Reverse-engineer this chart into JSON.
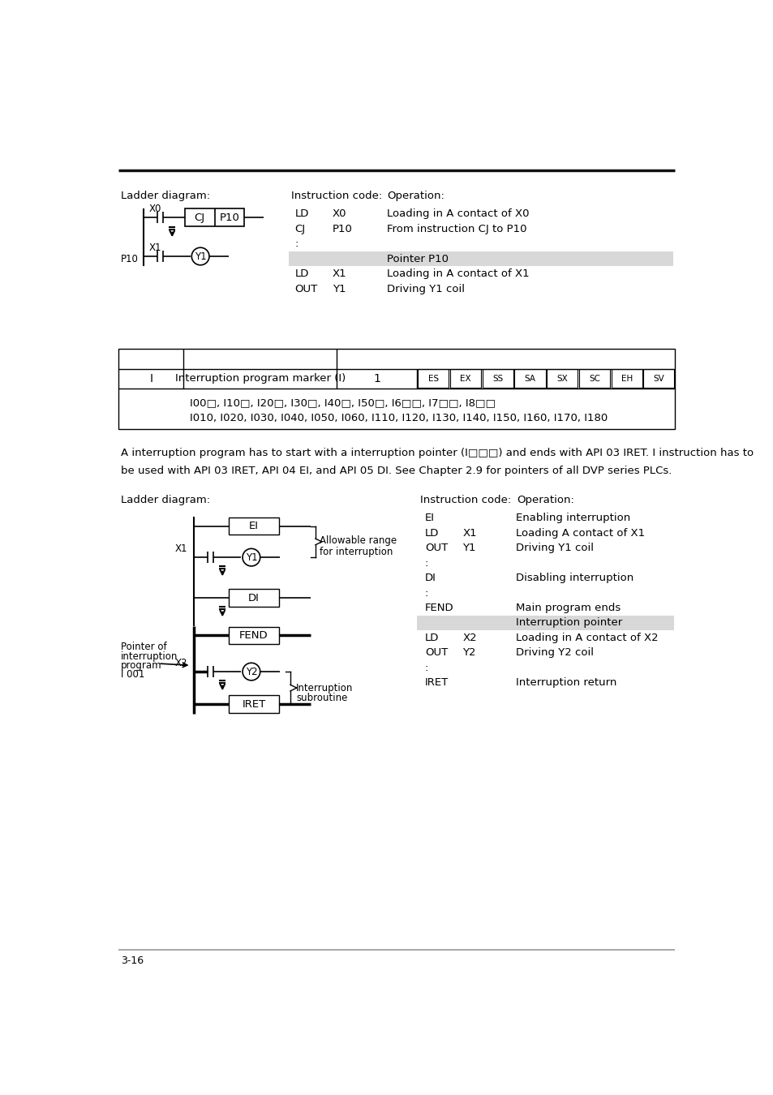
{
  "bg_color": "#ffffff",
  "page_number": "3-16",
  "sec1_ladder_label": "Ladder diagram:",
  "sec1_instr_label": "Instruction code:",
  "sec1_op_label": "Operation:",
  "sec1_instructions": [
    [
      "LD",
      "X0",
      "Loading in A contact of X0"
    ],
    [
      "CJ",
      "P10",
      "From instruction CJ to P10"
    ],
    [
      ":",
      "",
      ""
    ],
    [
      "",
      "",
      "Pointer P10"
    ],
    [
      "LD",
      "X1",
      "Loading in A contact of X1"
    ],
    [
      "OUT",
      "Y1",
      "Driving Y1 coil"
    ]
  ],
  "pointer_p10_row": 3,
  "table_body_row1": "I00□, I10□, I20□, I30□, I40□, I50□, I6□□, I7□□, I8□□",
  "table_body_row2": "I010, I020, I030, I040, I050, I060, I110, I120, I130, I140, I150, I160, I170, I180",
  "interrupt_para_line1": "A interruption program has to start with a interruption pointer (I□□□) and ends with API 03 IRET. I instruction has to",
  "interrupt_para_line2": "be used with API 03 IRET, API 04 EI, and API 05 DI. See Chapter 2.9 for pointers of all DVP series PLCs.",
  "sec2_ladder_label": "Ladder diagram:",
  "sec2_instr_label": "Instruction code:",
  "sec2_op_label": "Operation:",
  "sec2_instructions": [
    [
      "EI",
      "",
      "Enabling interruption"
    ],
    [
      "LD",
      "X1",
      "Loading A contact of X1"
    ],
    [
      "OUT",
      "Y1",
      "Driving Y1 coil"
    ],
    [
      ":",
      "",
      ""
    ],
    [
      "DI",
      "",
      "Disabling interruption"
    ],
    [
      ":",
      "",
      ""
    ],
    [
      "FEND",
      "",
      "Main program ends"
    ],
    [
      "",
      "",
      "Interruption pointer"
    ],
    [
      "LD",
      "X2",
      "Loading in A contact of X2"
    ],
    [
      "OUT",
      "Y2",
      "Driving Y2 coil"
    ],
    [
      ":",
      "",
      ""
    ],
    [
      "IRET",
      "",
      "Interruption return"
    ]
  ],
  "interrupt_pointer_row": 7,
  "chips": [
    "ES",
    "EX",
    "SS",
    "SA",
    "SX",
    "SC",
    "EH",
    "SV"
  ]
}
